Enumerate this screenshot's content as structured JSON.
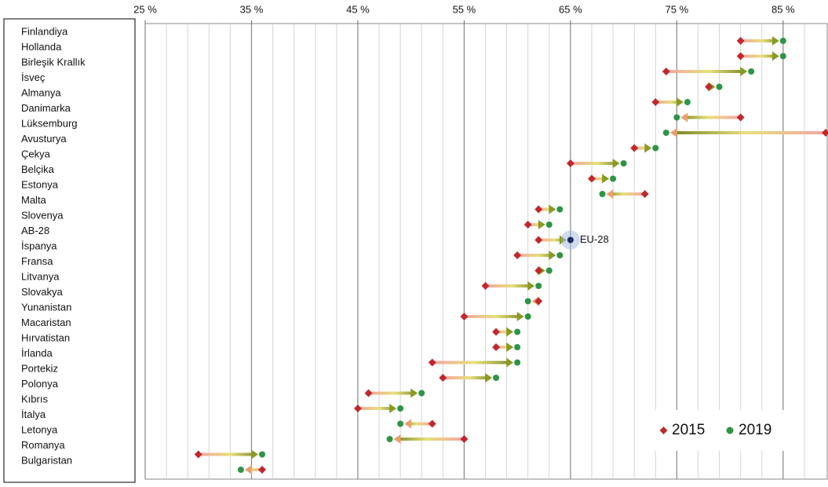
{
  "chart_data": {
    "type": "dumbbell",
    "categories": [
      "Finlandiya",
      "Hollanda",
      "Birleşik Krallık",
      "İsveç",
      "Almanya",
      "Danimarka",
      "Lüksemburg",
      "Avusturya",
      "Çekya",
      "Belçika",
      "Estonya",
      "Malta",
      "Slovenya",
      "AB-28",
      "İspanya",
      "Fransa",
      "Litvanya",
      "Slovakya",
      "Yunanistan",
      "Macaristan",
      "Hırvatistan",
      "İrlanda",
      "Portekiz",
      "Polonya",
      "Kıbrıs",
      "İtalya",
      "Letonya",
      "Romanya",
      "Bulgaristan"
    ],
    "series": [
      {
        "name": "2015",
        "color": "#c0282d",
        "values": [
          81,
          81,
          74,
          78,
          73,
          81,
          89,
          71,
          65,
          67,
          72,
          62,
          61,
          62,
          60,
          62,
          57,
          62,
          55,
          58,
          58,
          52,
          53,
          46,
          45,
          52,
          55,
          30,
          36
        ]
      },
      {
        "name": "2019",
        "color": "#2e9446",
        "values": [
          85,
          85,
          82,
          79,
          76,
          75,
          74,
          73,
          70,
          69,
          68,
          64,
          63,
          65,
          64,
          63,
          62,
          61,
          61,
          60,
          60,
          60,
          58,
          51,
          49,
          49,
          48,
          36,
          34
        ]
      }
    ],
    "xlim": [
      25,
      89
    ],
    "xticks": [
      {
        "value": 25,
        "label": "25 %"
      },
      {
        "value": 35,
        "label": "35 %"
      },
      {
        "value": 45,
        "label": "45 %"
      },
      {
        "value": 55,
        "label": "55 %"
      },
      {
        "value": 65,
        "label": "65 %"
      },
      {
        "value": 75,
        "label": "75 %"
      },
      {
        "value": 85,
        "label": "85 %"
      }
    ],
    "annotations": [
      {
        "text": "EU-28"
      }
    ],
    "grid": true,
    "legend": "lower right"
  }
}
